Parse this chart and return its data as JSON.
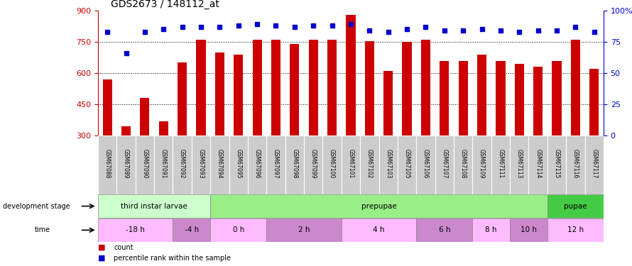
{
  "title": "GDS2673 / 148112_at",
  "samples": [
    "GSM67088",
    "GSM67089",
    "GSM67090",
    "GSM67091",
    "GSM67092",
    "GSM67093",
    "GSM67094",
    "GSM67095",
    "GSM67096",
    "GSM67097",
    "GSM67098",
    "GSM67099",
    "GSM67100",
    "GSM67101",
    "GSM67102",
    "GSM67103",
    "GSM67105",
    "GSM67106",
    "GSM67107",
    "GSM67108",
    "GSM67109",
    "GSM67111",
    "GSM67113",
    "GSM67114",
    "GSM67115",
    "GSM67116",
    "GSM67117"
  ],
  "counts": [
    570,
    345,
    480,
    370,
    650,
    760,
    700,
    690,
    760,
    760,
    740,
    760,
    760,
    880,
    755,
    610,
    750,
    760,
    660,
    660,
    690,
    660,
    645,
    630,
    660,
    760,
    620
  ],
  "percentile": [
    83,
    66,
    83,
    85,
    87,
    87,
    87,
    88,
    89,
    88,
    87,
    88,
    88,
    89,
    84,
    83,
    85,
    87,
    84,
    84,
    85,
    84,
    83,
    84,
    84,
    87,
    83
  ],
  "bar_color": "#cc0000",
  "dot_color": "#0000cc",
  "ylim_left": [
    300,
    900
  ],
  "ylim_right": [
    0,
    100
  ],
  "yticks_left": [
    300,
    450,
    600,
    750,
    900
  ],
  "yticks_right": [
    0,
    25,
    50,
    75,
    100
  ],
  "grid_vals": [
    450,
    600,
    750
  ],
  "dev_stages": [
    {
      "label": "third instar larvae",
      "start": 0,
      "end": 6,
      "color": "#ccffcc"
    },
    {
      "label": "prepupae",
      "start": 6,
      "end": 24,
      "color": "#99ee88"
    },
    {
      "label": "pupae",
      "start": 24,
      "end": 27,
      "color": "#44cc44"
    }
  ],
  "time_periods": [
    {
      "label": "-18 h",
      "start": 0,
      "end": 4,
      "color": "#ffbbff"
    },
    {
      "label": "-4 h",
      "start": 4,
      "end": 6,
      "color": "#cc88cc"
    },
    {
      "label": "0 h",
      "start": 6,
      "end": 9,
      "color": "#ffbbff"
    },
    {
      "label": "2 h",
      "start": 9,
      "end": 13,
      "color": "#cc88cc"
    },
    {
      "label": "4 h",
      "start": 13,
      "end": 17,
      "color": "#ffbbff"
    },
    {
      "label": "6 h",
      "start": 17,
      "end": 20,
      "color": "#cc88cc"
    },
    {
      "label": "8 h",
      "start": 20,
      "end": 22,
      "color": "#ffbbff"
    },
    {
      "label": "10 h",
      "start": 22,
      "end": 24,
      "color": "#cc88cc"
    },
    {
      "label": "12 h",
      "start": 24,
      "end": 27,
      "color": "#ffbbff"
    }
  ],
  "tick_color_left": "#cc0000",
  "tick_color_right": "#0000cc",
  "label_bg": "#cccccc"
}
